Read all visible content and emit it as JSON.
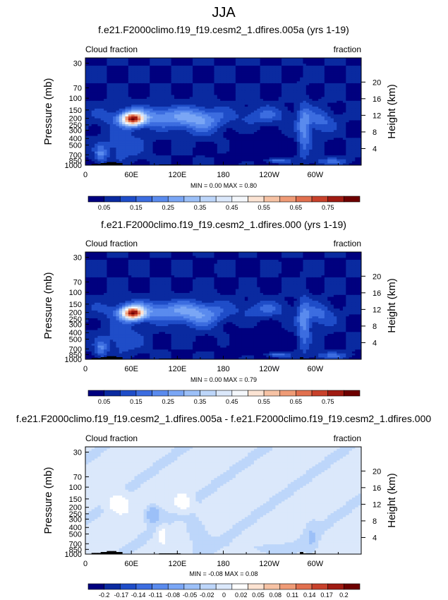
{
  "figure_title": "JJA",
  "colors": {
    "seq": [
      "#00007f",
      "#0a2aa0",
      "#1f4dc8",
      "#3c6de0",
      "#5a8bee",
      "#7aa6f5",
      "#9cc0f8",
      "#bdd6fa",
      "#dbe8fb",
      "#f4f7fb",
      "#fbe3d3",
      "#f6c2a4",
      "#ef9b76",
      "#e1704f",
      "#c8412b",
      "#a01b12",
      "#6e0000"
    ],
    "div": [
      "#00007f",
      "#0a2aa0",
      "#1f4dc8",
      "#3c6de0",
      "#5a8bee",
      "#7aa6f5",
      "#9cc0f8",
      "#bdd6fa",
      "#dbe8fb",
      "#ffffff",
      "#fde3d2",
      "#f6c2a4",
      "#ef9b76",
      "#e1704f",
      "#c8412b",
      "#a01b12",
      "#6e0000"
    ],
    "topo": "#000000"
  },
  "chart_data": [
    {
      "type": "heatmap",
      "title": "f.e21.F2000climo.f19_f19.cesm2_1.dfires.005a (yrs 1-19)",
      "left_label": "Cloud fraction",
      "right_label": "fraction",
      "ylabel": "Pressure (mb)",
      "ylabel_right": "Height (km)",
      "y_scale": "log",
      "x_ticks": [
        "0",
        "60E",
        "120E",
        "180",
        "120W",
        "60W"
      ],
      "y_ticks": [
        "30",
        "70",
        "100",
        "150",
        "200",
        "250",
        "300",
        "400",
        "500",
        "700",
        "850",
        "1000"
      ],
      "y_ticks_right": [
        "20",
        "16",
        "12",
        "8",
        "4"
      ],
      "min_max_text": "MIN =   0.00   MAX =   0.80",
      "min": 0.0,
      "max": 0.8,
      "levels": [
        0.05,
        0.1,
        0.15,
        0.2,
        0.25,
        0.3,
        0.35,
        0.4,
        0.45,
        0.5,
        0.55,
        0.6,
        0.65,
        0.7,
        0.75,
        0.8
      ],
      "colorbar_labels": [
        "0.05",
        "0.15",
        "0.25",
        "0.35",
        "0.45",
        "0.55",
        "0.65",
        "0.75"
      ],
      "palette": "seq"
    },
    {
      "type": "heatmap",
      "title": "f.e21.F2000climo.f19_f19.cesm2_1.dfires.000 (yrs 1-19)",
      "left_label": "Cloud fraction",
      "right_label": "fraction",
      "ylabel": "Pressure (mb)",
      "ylabel_right": "Height (km)",
      "y_scale": "log",
      "x_ticks": [
        "0",
        "60E",
        "120E",
        "180",
        "120W",
        "60W"
      ],
      "y_ticks": [
        "30",
        "70",
        "100",
        "150",
        "200",
        "250",
        "300",
        "400",
        "500",
        "700",
        "850",
        "1000"
      ],
      "y_ticks_right": [
        "20",
        "16",
        "12",
        "8",
        "4"
      ],
      "min_max_text": "MIN =   0.00   MAX =   0.79",
      "min": 0.0,
      "max": 0.79,
      "levels": [
        0.05,
        0.1,
        0.15,
        0.2,
        0.25,
        0.3,
        0.35,
        0.4,
        0.45,
        0.5,
        0.55,
        0.6,
        0.65,
        0.7,
        0.75,
        0.8
      ],
      "colorbar_labels": [
        "0.05",
        "0.15",
        "0.25",
        "0.35",
        "0.45",
        "0.55",
        "0.65",
        "0.75"
      ],
      "palette": "seq"
    },
    {
      "type": "heatmap",
      "title": "f.e21.F2000climo.f19_f19.cesm2_1.dfires.005a - f.e21.F2000climo.f19_f19.cesm2_1.dfires.000",
      "left_label": "Cloud fraction",
      "right_label": "fraction",
      "ylabel": "Pressure (mb)",
      "ylabel_right": "Height (km)",
      "y_scale": "log",
      "x_ticks": [
        "0",
        "60E",
        "120E",
        "180",
        "120W",
        "60W"
      ],
      "y_ticks": [
        "30",
        "70",
        "100",
        "150",
        "200",
        "250",
        "300",
        "400",
        "500",
        "700",
        "850",
        "1000"
      ],
      "y_ticks_right": [
        "20",
        "16",
        "12",
        "8",
        "4"
      ],
      "min_max_text": "MIN =  -0.08   MAX =   0.08",
      "min": -0.08,
      "max": 0.08,
      "levels": [
        -0.2,
        -0.17,
        -0.14,
        -0.11,
        -0.08,
        -0.05,
        -0.02,
        0,
        0.02,
        0.05,
        0.08,
        0.11,
        0.14,
        0.17,
        0.2
      ],
      "colorbar_labels": [
        "-0.2",
        "-0.17",
        "-0.14",
        "-0.11",
        "-0.08",
        "-0.05",
        "-0.02",
        "0",
        "0.02",
        "0.05",
        "0.08",
        "0.11",
        "0.14",
        "0.17",
        "0.2"
      ],
      "palette": "div"
    }
  ]
}
